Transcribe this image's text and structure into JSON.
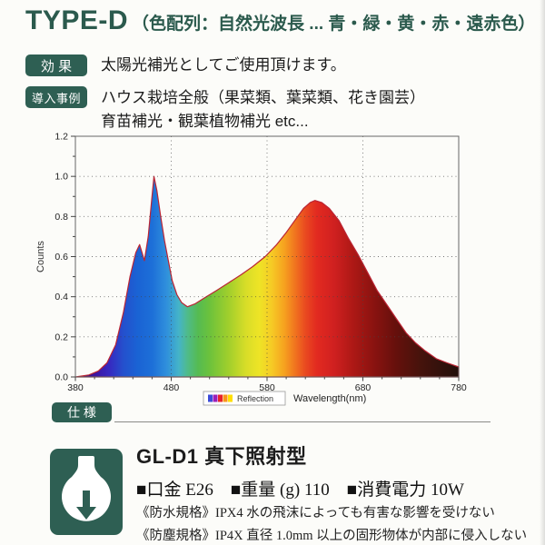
{
  "header": {
    "model": "TYPE-D",
    "subtitle": "（色配列：自然光波長 ... 青・緑・黄・赤・遠赤色）",
    "accent_color": "#2e5f53"
  },
  "effect": {
    "badge": "効 果",
    "text": "太陽光補光としてご使用頂けます。"
  },
  "use_cases": {
    "badge": "導入事例",
    "line1": "ハウス栽培全般（果菜類、葉菜類、花き園芸）",
    "line2": "育苗補光・観葉植物補光 etc..."
  },
  "spec": {
    "badge": "仕 様"
  },
  "chart_data": {
    "type": "area",
    "title": "",
    "xlabel": "Wavelength(nm)",
    "ylabel": "Counts",
    "xlim": [
      380,
      780
    ],
    "ylim": [
      0,
      1.2
    ],
    "x_ticks": [
      380,
      480,
      580,
      680,
      780
    ],
    "y_ticks": [
      0.0,
      0.2,
      0.4,
      0.6,
      0.8,
      1.0,
      1.2
    ],
    "x_gridlines": [
      480,
      580,
      680
    ],
    "y_gridlines": [
      0.2,
      0.4,
      0.6,
      0.8,
      1.0
    ],
    "grid": "dashed",
    "legend": {
      "label": "Reflection",
      "position": "below-axis",
      "swatches": [
        "#3b4bd8",
        "#9b1fb8",
        "#e8232a",
        "#f7941d",
        "#ffdf00"
      ]
    },
    "curve_color": "#bb2433",
    "series": [
      {
        "name": "Reflection",
        "x": [
          380,
          394,
          404,
          413,
          422,
          430,
          437,
          443,
          447,
          452,
          456,
          459,
          462,
          465,
          469,
          473,
          477,
          481,
          486,
          491,
          497,
          505,
          515,
          527,
          540,
          553,
          565,
          578,
          590,
          600,
          609,
          618,
          625,
          630,
          637,
          645,
          655,
          665,
          675,
          685,
          695,
          705,
          715,
          725,
          735,
          745,
          757,
          768,
          780
        ],
        "values": [
          0,
          0.01,
          0.03,
          0.07,
          0.16,
          0.32,
          0.5,
          0.62,
          0.66,
          0.58,
          0.7,
          0.85,
          1.0,
          0.93,
          0.8,
          0.68,
          0.58,
          0.48,
          0.41,
          0.37,
          0.35,
          0.365,
          0.395,
          0.43,
          0.47,
          0.51,
          0.55,
          0.6,
          0.66,
          0.72,
          0.78,
          0.84,
          0.87,
          0.88,
          0.87,
          0.84,
          0.78,
          0.69,
          0.61,
          0.52,
          0.43,
          0.36,
          0.29,
          0.22,
          0.17,
          0.13,
          0.09,
          0.07,
          0.05
        ]
      }
    ],
    "annotations": {
      "blue_peak": {
        "wavelength": 462,
        "counts": 1.0
      },
      "blue_shoulder": {
        "wavelength": 447,
        "counts": 0.66
      },
      "valley": {
        "wavelength": 497,
        "counts": 0.35
      },
      "red_peak": {
        "wavelength": 630,
        "counts": 0.88
      }
    },
    "spectrum_colors": [
      {
        "wavelength": 380,
        "color": "#2d0a5e"
      },
      {
        "wavelength": 400,
        "color": "#3c14a0"
      },
      {
        "wavelength": 415,
        "color": "#3728c0"
      },
      {
        "wavelength": 430,
        "color": "#2450cd"
      },
      {
        "wavelength": 445,
        "color": "#1a63d4"
      },
      {
        "wavelength": 460,
        "color": "#1d6fd8"
      },
      {
        "wavelength": 475,
        "color": "#2f8fdc"
      },
      {
        "wavelength": 488,
        "color": "#45b4c8"
      },
      {
        "wavelength": 497,
        "color": "#4fbb8a"
      },
      {
        "wavelength": 508,
        "color": "#55bb52"
      },
      {
        "wavelength": 520,
        "color": "#6cc23c"
      },
      {
        "wavelength": 540,
        "color": "#a1cf2c"
      },
      {
        "wavelength": 558,
        "color": "#d8dd28"
      },
      {
        "wavelength": 572,
        "color": "#eee426"
      },
      {
        "wavelength": 585,
        "color": "#f6ca25"
      },
      {
        "wavelength": 598,
        "color": "#f6a21f"
      },
      {
        "wavelength": 610,
        "color": "#f0711f"
      },
      {
        "wavelength": 620,
        "color": "#e94a20"
      },
      {
        "wavelength": 632,
        "color": "#e22a20"
      },
      {
        "wavelength": 650,
        "color": "#d02020"
      },
      {
        "wavelength": 668,
        "color": "#b01916"
      },
      {
        "wavelength": 690,
        "color": "#8c1310"
      },
      {
        "wavelength": 715,
        "color": "#65100c"
      },
      {
        "wavelength": 740,
        "color": "#46130c"
      },
      {
        "wavelength": 780,
        "color": "#22100b"
      }
    ]
  },
  "product": {
    "name": "GL-D1 真下照射型",
    "specs": "■口金 E26　■重量 (g) 110　■消費電力 10W",
    "waterproof": "《防水規格》IPX4 水の飛沫によっても有害な影響を受けない",
    "dustproof": "《防塵規格》IP4X 直径 1.0mm 以上の固形物体が内部に侵入しない"
  }
}
